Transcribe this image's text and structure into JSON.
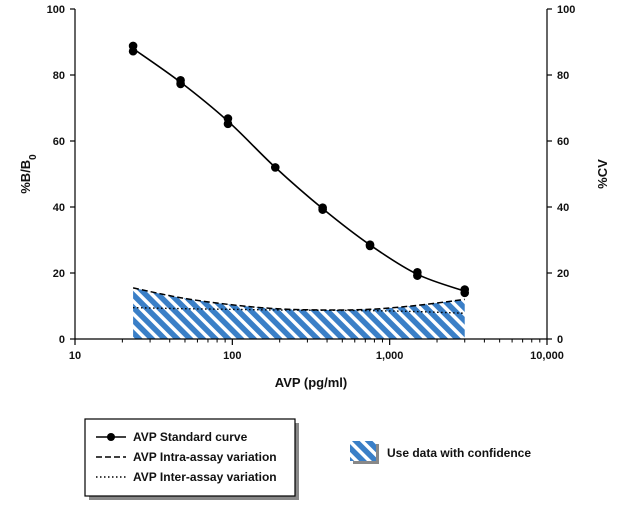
{
  "chart_data": {
    "type": "line",
    "xlabel": "AVP (pg/ml)",
    "ylabel_left_main": "%B/B",
    "ylabel_left_sub": "0",
    "ylabel_right": "%CV",
    "x_scale": "log",
    "xlim": [
      10,
      10000
    ],
    "ylim": [
      0,
      100
    ],
    "y_right_lim": [
      0,
      100
    ],
    "x_ticks": [
      10,
      100,
      1000,
      10000
    ],
    "x_tick_labels": [
      "10",
      "100",
      "1,000",
      "10,000"
    ],
    "y_ticks": [
      0,
      20,
      40,
      60,
      80,
      100
    ],
    "y_tick_labels": [
      "0",
      "20",
      "40",
      "60",
      "80",
      "100"
    ],
    "grid": false,
    "series": [
      {
        "name": "AVP Standard curve",
        "style": "solid-markers",
        "x": [
          23.4,
          46.9,
          93.8,
          187.5,
          375,
          750,
          1500,
          3000
        ],
        "y": [
          88.0,
          77.8,
          66.0,
          52.0,
          39.5,
          28.5,
          19.6,
          14.5
        ],
        "points": [
          [
            23.4,
            88.8
          ],
          [
            23.4,
            87.2
          ],
          [
            46.9,
            78.4
          ],
          [
            46.9,
            77.3
          ],
          [
            93.8,
            66.8
          ],
          [
            93.8,
            65.2
          ],
          [
            187.5,
            52.0
          ],
          [
            375,
            39.8
          ],
          [
            375,
            39.2
          ],
          [
            750,
            28.6
          ],
          [
            750,
            28.2
          ],
          [
            1500,
            20.2
          ],
          [
            1500,
            19.2
          ],
          [
            3000,
            15.0
          ],
          [
            3000,
            14.0
          ]
        ]
      },
      {
        "name": "AVP Intra-assay variation",
        "style": "dashed",
        "x": [
          23.4,
          46.9,
          93.8,
          187.5,
          375,
          750,
          1500,
          3000
        ],
        "y": [
          15.5,
          12.5,
          10.5,
          9.2,
          8.8,
          9.0,
          10.2,
          12.0
        ]
      },
      {
        "name": "AVP Inter-assay variation",
        "style": "dotted",
        "x": [
          23.4,
          46.9,
          93.8,
          187.5,
          375,
          750,
          1500,
          3000
        ],
        "y": [
          9.5,
          9.2,
          9.0,
          8.8,
          8.7,
          8.6,
          8.3,
          7.8
        ]
      }
    ],
    "confidence_region": {
      "label": "Use data with confidence",
      "x_range": [
        23.4,
        3000
      ]
    },
    "legend_entries": [
      "AVP Standard curve",
      "AVP Intra-assay variation",
      "AVP Inter-assay variation"
    ],
    "legend_placement": "bottom",
    "colors": {
      "line": "#000000",
      "hatch_blue": "#3a7fc7",
      "hatch_light": "#ffffff"
    }
  }
}
